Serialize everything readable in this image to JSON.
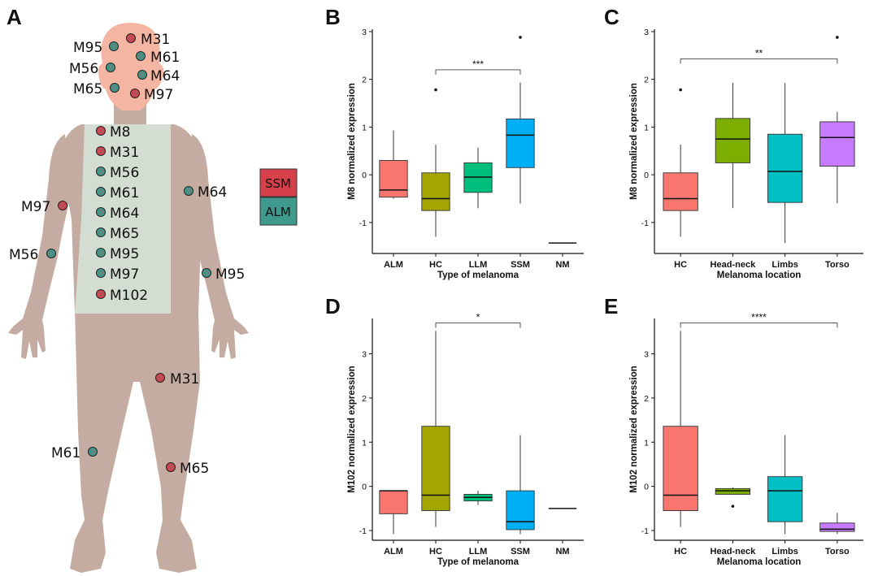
{
  "panel_a": {
    "label": "A",
    "legend": [
      {
        "text": "SSM",
        "color": "#d5404b"
      },
      {
        "text": "ALM",
        "color": "#3d9a8c"
      }
    ],
    "colors": {
      "head": "#f4b6a3",
      "skin": "#c5aca2",
      "shirt": "#d3ddd2",
      "ssm": "#d5404b",
      "alm": "#3d9a8c"
    },
    "markers": [
      {
        "text": "M95",
        "type": "alm"
      },
      {
        "text": "M31",
        "type": "ssm"
      },
      {
        "text": "M56",
        "type": "alm"
      },
      {
        "text": "M61",
        "type": "alm"
      },
      {
        "text": "M64",
        "type": "alm"
      },
      {
        "text": "M65",
        "type": "alm"
      },
      {
        "text": "M97",
        "type": "ssm"
      },
      {
        "text": "M8",
        "type": "ssm"
      },
      {
        "text": "M31",
        "type": "ssm"
      },
      {
        "text": "M56",
        "type": "alm"
      },
      {
        "text": "M61",
        "type": "alm"
      },
      {
        "text": "M64",
        "type": "alm"
      },
      {
        "text": "M65",
        "type": "alm"
      },
      {
        "text": "M95",
        "type": "alm"
      },
      {
        "text": "M97",
        "type": "alm"
      },
      {
        "text": "M102",
        "type": "ssm"
      },
      {
        "text": "M97",
        "type": "ssm"
      },
      {
        "text": "M64",
        "type": "alm"
      },
      {
        "text": "M56",
        "type": "alm"
      },
      {
        "text": "M95",
        "type": "alm"
      },
      {
        "text": "M31",
        "type": "ssm"
      },
      {
        "text": "M61",
        "type": "alm"
      },
      {
        "text": "M65",
        "type": "ssm"
      }
    ]
  },
  "chart_data": [
    {
      "panel": "B",
      "type": "box",
      "xlabel": "Type of melanoma",
      "ylabel": "M8 normalized expression",
      "ylim": [
        -1.65,
        3.05
      ],
      "yticks": [
        -1,
        0,
        1,
        2,
        3
      ],
      "boxes": [
        {
          "category": "ALM",
          "color": "#f8766d",
          "min": -0.5,
          "q1": -0.47,
          "median": -0.32,
          "q3": 0.3,
          "max": 0.93,
          "outliers": []
        },
        {
          "category": "HC",
          "color": "#a3a500",
          "min": -1.3,
          "q1": -0.75,
          "median": -0.5,
          "q3": 0.04,
          "max": 0.63,
          "outliers": [
            1.78
          ]
        },
        {
          "category": "LLM",
          "color": "#00bf7d",
          "min": -0.7,
          "q1": -0.37,
          "median": -0.05,
          "q3": 0.25,
          "max": 0.57,
          "outliers": []
        },
        {
          "category": "SSM",
          "color": "#00b0f6",
          "min": -0.6,
          "q1": 0.15,
          "median": 0.83,
          "q3": 1.17,
          "max": 1.93,
          "outliers": [
            2.88
          ]
        },
        {
          "category": "NM",
          "color": "#e76bf3",
          "min": -1.43,
          "q1": -1.43,
          "median": -1.43,
          "q3": -1.43,
          "max": -1.43,
          "outliers": []
        }
      ],
      "significance": [
        {
          "from": "HC",
          "to": "SSM",
          "y": 2.2,
          "label": "***"
        }
      ]
    },
    {
      "panel": "C",
      "type": "box",
      "xlabel": "Melanoma location",
      "ylabel": "M8 normalized expression",
      "ylim": [
        -1.65,
        3.05
      ],
      "yticks": [
        -1,
        0,
        1,
        2,
        3
      ],
      "boxes": [
        {
          "category": "HC",
          "color": "#f8766d",
          "min": -1.3,
          "q1": -0.75,
          "median": -0.5,
          "q3": 0.04,
          "max": 0.63,
          "outliers": [
            1.78
          ]
        },
        {
          "category": "Head-neck",
          "color": "#7cae00",
          "min": -0.7,
          "q1": 0.25,
          "median": 0.75,
          "q3": 1.18,
          "max": 1.93,
          "outliers": []
        },
        {
          "category": "Limbs",
          "color": "#00bfc4",
          "min": -1.43,
          "q1": -0.58,
          "median": 0.07,
          "q3": 0.85,
          "max": 1.92,
          "outliers": []
        },
        {
          "category": "Torso",
          "color": "#c77cff",
          "min": -0.6,
          "q1": 0.18,
          "median": 0.78,
          "q3": 1.11,
          "max": 1.32,
          "outliers": [
            2.88
          ]
        }
      ],
      "significance": [
        {
          "from": "HC",
          "to": "Torso",
          "y": 2.43,
          "label": "**"
        }
      ]
    },
    {
      "panel": "D",
      "type": "box",
      "xlabel": "Type of melanoma",
      "ylabel": "M102 normalized expression",
      "ylim": [
        -1.22,
        3.8
      ],
      "yticks": [
        -1,
        0,
        1,
        2,
        3
      ],
      "boxes": [
        {
          "category": "ALM",
          "color": "#f8766d",
          "min": -1.08,
          "q1": -0.62,
          "median": -0.1,
          "q3": -0.1,
          "max": -0.1,
          "outliers": []
        },
        {
          "category": "HC",
          "color": "#a3a500",
          "min": -0.92,
          "q1": -0.55,
          "median": -0.2,
          "q3": 1.36,
          "max": 3.52,
          "outliers": []
        },
        {
          "category": "LLM",
          "color": "#00bf7d",
          "min": -0.42,
          "q1": -0.33,
          "median": -0.25,
          "q3": -0.18,
          "max": -0.1,
          "outliers": []
        },
        {
          "category": "SSM",
          "color": "#00b0f6",
          "min": -1.08,
          "q1": -0.98,
          "median": -0.8,
          "q3": -0.1,
          "max": 1.16,
          "outliers": []
        },
        {
          "category": "NM",
          "color": "#e76bf3",
          "min": -0.5,
          "q1": -0.5,
          "median": -0.5,
          "q3": -0.5,
          "max": -0.5,
          "outliers": []
        }
      ],
      "significance": [
        {
          "from": "HC",
          "to": "SSM",
          "y": 3.7,
          "label": "*"
        }
      ]
    },
    {
      "panel": "E",
      "type": "box",
      "xlabel": "Melanoma location",
      "ylabel": "M102 normalized expression",
      "ylim": [
        -1.22,
        3.8
      ],
      "yticks": [
        -1,
        0,
        1,
        2,
        3
      ],
      "boxes": [
        {
          "category": "HC",
          "color": "#f8766d",
          "min": -0.92,
          "q1": -0.55,
          "median": -0.2,
          "q3": 1.36,
          "max": 3.52,
          "outliers": []
        },
        {
          "category": "Head-neck",
          "color": "#7cae00",
          "min": -0.18,
          "q1": -0.18,
          "median": -0.1,
          "q3": -0.05,
          "max": -0.02,
          "outliers": [
            -0.45
          ]
        },
        {
          "category": "Limbs",
          "color": "#00bfc4",
          "min": -1.08,
          "q1": -0.8,
          "median": -0.1,
          "q3": 0.22,
          "max": 1.16,
          "outliers": []
        },
        {
          "category": "Torso",
          "color": "#c77cff",
          "min": -1.08,
          "q1": -1.02,
          "median": -0.97,
          "q3": -0.83,
          "max": -0.6,
          "outliers": []
        }
      ],
      "significance": [
        {
          "from": "HC",
          "to": "Torso",
          "y": 3.7,
          "label": "****"
        }
      ]
    }
  ]
}
